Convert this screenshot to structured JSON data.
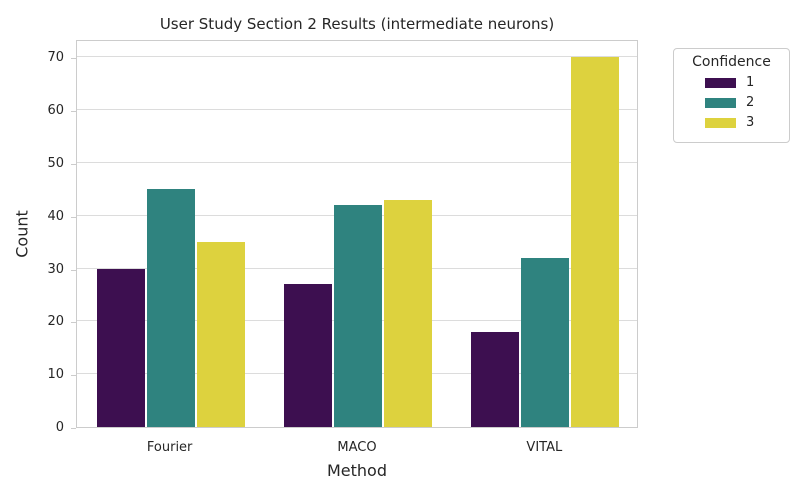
{
  "chart_data": {
    "type": "bar",
    "title": "User Study Section 2 Results (intermediate neurons)",
    "xlabel": "Method",
    "ylabel": "Count",
    "categories": [
      "Fourier",
      "MACO",
      "VITAL"
    ],
    "series": [
      {
        "name": "1",
        "color": "#3d0f50",
        "values": [
          30,
          27,
          18
        ]
      },
      {
        "name": "2",
        "color": "#2f837f",
        "values": [
          45,
          42,
          32
        ]
      },
      {
        "name": "3",
        "color": "#ddd23e",
        "values": [
          35,
          43,
          70
        ]
      }
    ],
    "ylim": [
      0,
      73.5
    ],
    "yticks": [
      0,
      10,
      20,
      30,
      40,
      50,
      60,
      70
    ],
    "grid": "horizontal",
    "legend": {
      "title": "Confidence",
      "position": "upper-right-outside"
    }
  },
  "style": {
    "text_color": "#262626",
    "grid_color": "#dcdcdc",
    "spine_color": "#cccccc",
    "background": "#ffffff"
  }
}
